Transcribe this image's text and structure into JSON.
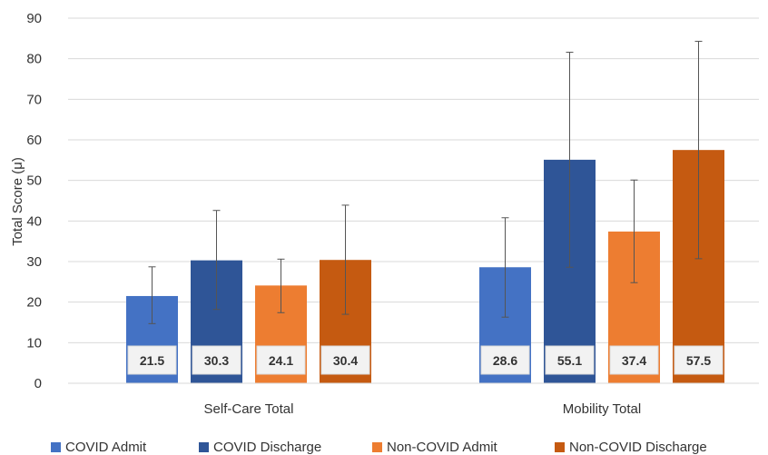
{
  "chart_data": {
    "type": "bar",
    "title": "",
    "xlabel": "",
    "ylabel": "Total Score (μ)",
    "ylim": [
      0,
      90
    ],
    "yticks": [
      0,
      10,
      20,
      30,
      40,
      50,
      60,
      70,
      80,
      90
    ],
    "grid": true,
    "legend_position": "bottom",
    "categories": [
      "Self-Care Total",
      "Mobility Total"
    ],
    "series": [
      {
        "name": "COVID Admit",
        "color": "#4472C4",
        "values": [
          21.5,
          28.6
        ],
        "error_low": [
          14.7,
          16.3
        ],
        "error_high": [
          28.7,
          40.8
        ]
      },
      {
        "name": "COVID Discharge",
        "color": "#2F5597",
        "values": [
          30.3,
          55.1
        ],
        "error_low": [
          18.2,
          28.6
        ],
        "error_high": [
          42.6,
          81.6
        ]
      },
      {
        "name": "Non-COVID Admit",
        "color": "#ED7D31",
        "values": [
          24.1,
          37.4
        ],
        "error_low": [
          17.4,
          24.8
        ],
        "error_high": [
          30.6,
          50.1
        ]
      },
      {
        "name": "Non-COVID Discharge",
        "color": "#C55A11",
        "values": [
          30.4,
          57.5
        ],
        "error_low": [
          17.0,
          30.7
        ],
        "error_high": [
          43.9,
          84.3
        ]
      }
    ]
  }
}
